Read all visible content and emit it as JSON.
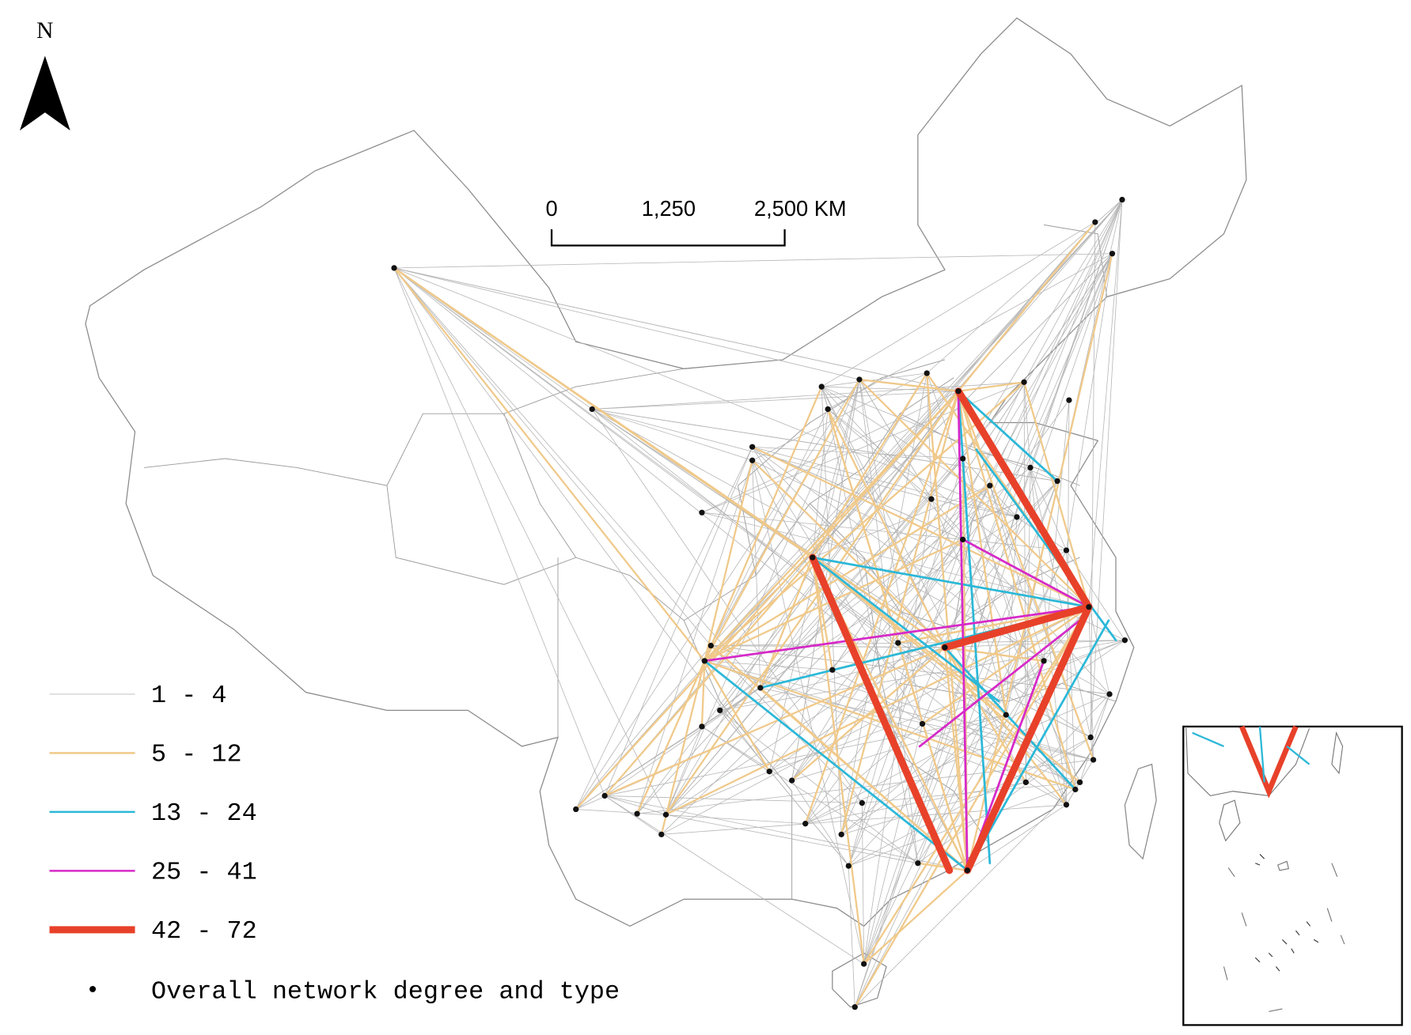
{
  "north_arrow": {
    "label": "N"
  },
  "scale_bar": {
    "labels": [
      "0",
      "1,250",
      "2,500 KM"
    ]
  },
  "legend": {
    "items": [
      {
        "label": "1 - 4",
        "color": "#c8c8c8"
      },
      {
        "label": "5 - 12",
        "color": "#f0c98a"
      },
      {
        "label": "13 - 24",
        "color": "#2bb8d8"
      },
      {
        "label": "25 - 41",
        "color": "#d629c8"
      },
      {
        "label": "42 - 72",
        "color": "#e8412a"
      }
    ],
    "node_label": "Overall network degree and type"
  }
}
